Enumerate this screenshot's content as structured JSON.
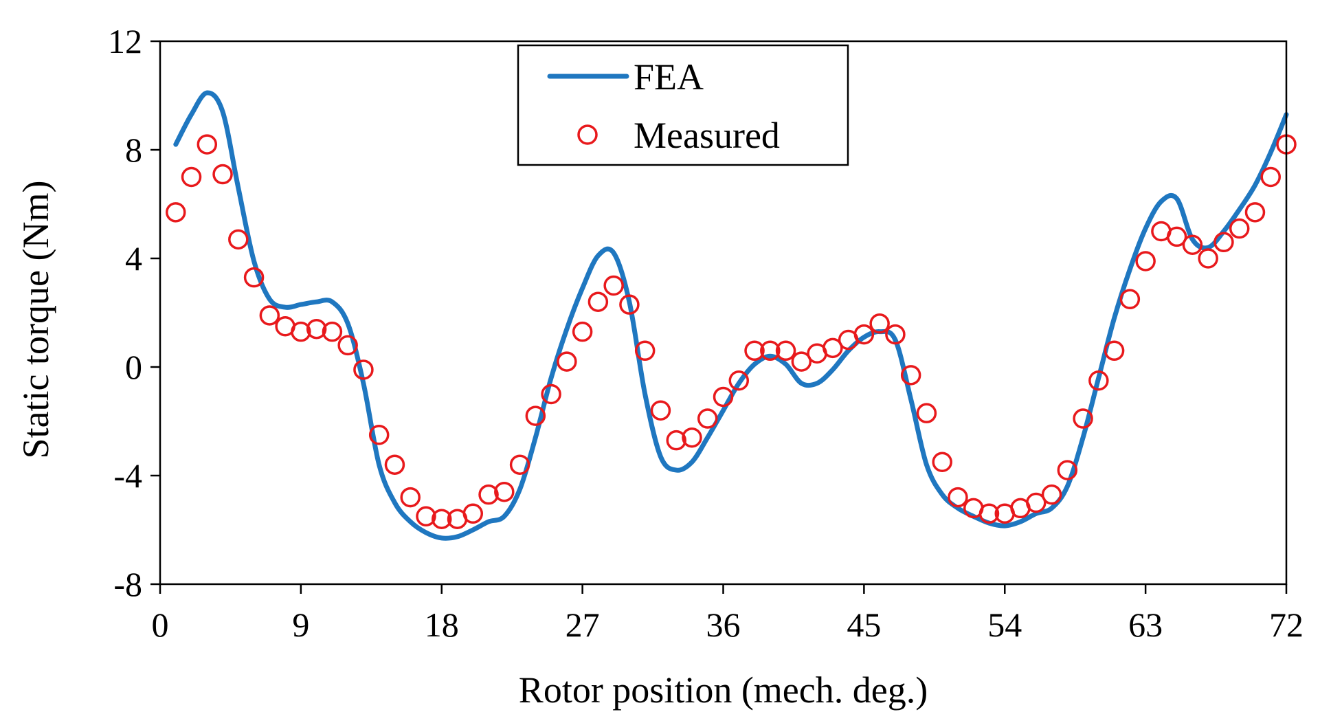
{
  "chart_data": {
    "type": "line",
    "title": "",
    "xlabel": "Rotor position (mech. deg.)",
    "ylabel": "Static torque (Nm)",
    "xlim": [
      0,
      72
    ],
    "ylim": [
      -8,
      12
    ],
    "xticks": [
      0,
      9,
      18,
      27,
      36,
      45,
      54,
      63,
      72
    ],
    "yticks": [
      -8,
      -4,
      0,
      4,
      8,
      12
    ],
    "grid": false,
    "legend": {
      "placement": "top-center"
    },
    "colors": {
      "fea": "#1f77c0",
      "measured": "#e8191c"
    },
    "series": [
      {
        "name": "FEA",
        "style": "line",
        "x": [
          1,
          2,
          3,
          4,
          5,
          6,
          7,
          8,
          9,
          10,
          11,
          12,
          13,
          14,
          15,
          16,
          17,
          18,
          19,
          20,
          21,
          22,
          23,
          24,
          25,
          26,
          27,
          28,
          29,
          30,
          31,
          32,
          33,
          34,
          35,
          36,
          37,
          38,
          39,
          40,
          41,
          42,
          43,
          44,
          45,
          46,
          47,
          48,
          49,
          50,
          51,
          52,
          53,
          54,
          55,
          56,
          57,
          58,
          59,
          60,
          61,
          62,
          63,
          64,
          65,
          66,
          67,
          68,
          69,
          70,
          71,
          72
        ],
        "y": [
          8.2,
          9.3,
          10.1,
          9.4,
          6.6,
          3.9,
          2.5,
          2.2,
          2.3,
          2.4,
          2.4,
          1.6,
          -0.6,
          -3.6,
          -5.0,
          -5.7,
          -6.1,
          -6.3,
          -6.25,
          -6.0,
          -5.7,
          -5.5,
          -4.5,
          -2.6,
          -0.4,
          1.4,
          2.9,
          4.1,
          4.2,
          2.4,
          -1.0,
          -3.3,
          -3.8,
          -3.5,
          -2.6,
          -1.6,
          -0.6,
          0.1,
          0.4,
          0.1,
          -0.6,
          -0.6,
          -0.1,
          0.6,
          1.1,
          1.3,
          1.0,
          -1.2,
          -3.6,
          -4.7,
          -5.2,
          -5.5,
          -5.75,
          -5.85,
          -5.7,
          -5.4,
          -5.2,
          -4.4,
          -2.6,
          -0.4,
          1.8,
          3.6,
          5.1,
          6.1,
          6.2,
          4.7,
          4.4,
          5.0,
          5.8,
          6.7,
          7.9,
          9.3
        ]
      },
      {
        "name": "Measured",
        "style": "markers",
        "x": [
          1,
          2,
          3,
          4,
          5,
          6,
          7,
          8,
          9,
          10,
          11,
          12,
          13,
          14,
          15,
          16,
          17,
          18,
          19,
          20,
          21,
          22,
          23,
          24,
          25,
          26,
          27,
          28,
          29,
          30,
          31,
          32,
          33,
          34,
          35,
          36,
          37,
          38,
          39,
          40,
          41,
          42,
          43,
          44,
          45,
          46,
          47,
          48,
          49,
          50,
          51,
          52,
          53,
          54,
          55,
          56,
          57,
          58,
          59,
          60,
          61,
          62,
          63,
          64,
          65,
          66,
          67,
          68,
          69,
          70,
          71,
          72
        ],
        "y": [
          5.7,
          7.0,
          8.2,
          7.1,
          4.7,
          3.3,
          1.9,
          1.5,
          1.3,
          1.4,
          1.3,
          0.8,
          -0.1,
          -2.5,
          -3.6,
          -4.8,
          -5.5,
          -5.6,
          -5.6,
          -5.4,
          -4.7,
          -4.6,
          -3.6,
          -1.8,
          -1.0,
          0.2,
          1.3,
          2.4,
          3.0,
          2.3,
          0.6,
          -1.6,
          -2.7,
          -2.6,
          -1.9,
          -1.1,
          -0.5,
          0.6,
          0.6,
          0.6,
          0.2,
          0.5,
          0.7,
          1.0,
          1.2,
          1.6,
          1.2,
          -0.3,
          -1.7,
          -3.5,
          -4.8,
          -5.2,
          -5.4,
          -5.4,
          -5.2,
          -5.0,
          -4.7,
          -3.8,
          -1.9,
          -0.5,
          0.6,
          2.5,
          3.9,
          5.0,
          4.8,
          4.5,
          4.0,
          4.6,
          5.1,
          5.7,
          7.0,
          8.2
        ]
      }
    ]
  }
}
